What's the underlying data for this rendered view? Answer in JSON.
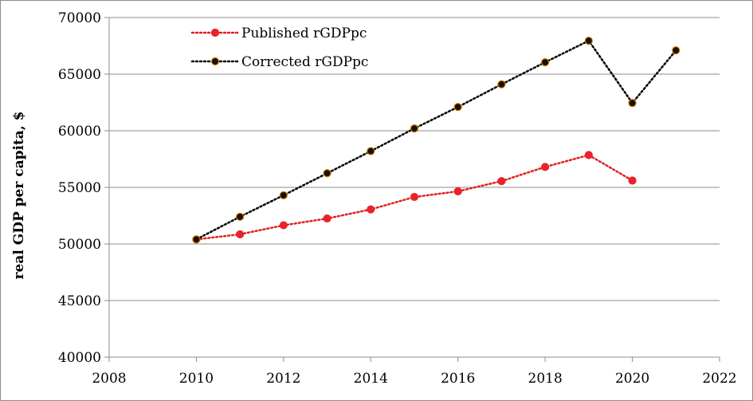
{
  "chart_data": {
    "type": "scatter",
    "title": "",
    "xlabel": "",
    "ylabel": "real GDP per capita, $",
    "xlim": [
      2008,
      2022
    ],
    "ylim": [
      40000,
      70000
    ],
    "xticks": [
      2008,
      2010,
      2012,
      2014,
      2016,
      2018,
      2020,
      2022
    ],
    "yticks": [
      40000,
      45000,
      50000,
      55000,
      60000,
      65000,
      70000
    ],
    "grid": "horizontal",
    "legend_position": "top-left",
    "series": [
      {
        "name": "Published rGDPpc",
        "color": "#e02020",
        "marker_color": "#e8232a",
        "line_style": "dotted",
        "x": [
          2010,
          2011,
          2012,
          2013,
          2014,
          2015,
          2016,
          2017,
          2018,
          2019,
          2020
        ],
        "y": [
          50400,
          50850,
          51650,
          52250,
          53050,
          54150,
          54650,
          55550,
          56800,
          57850,
          55600
        ]
      },
      {
        "name": "Corrected rGDPpc",
        "color": "#000000",
        "marker_color": "#1a1000",
        "marker_edge": "#c87800",
        "line_style": "dotted",
        "x": [
          2010,
          2011,
          2012,
          2013,
          2014,
          2015,
          2016,
          2017,
          2018,
          2019,
          2020,
          2021
        ],
        "y": [
          50400,
          52400,
          54300,
          56250,
          58200,
          60200,
          62100,
          64100,
          66050,
          67950,
          62450,
          67100
        ]
      }
    ]
  }
}
